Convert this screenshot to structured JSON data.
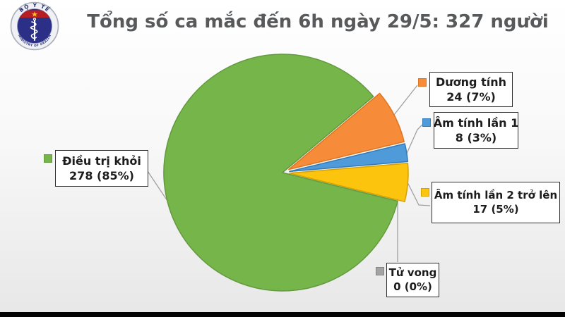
{
  "header": {
    "title": "Tổng số ca mắc đến 6h ngày 29/5: 327 người",
    "logo": {
      "top_text": "BỘ Y TẾ",
      "bottom_text": "MINISTRY OF HEALTH"
    }
  },
  "chart_data": {
    "type": "pie",
    "title": "Tổng số ca mắc đến 6h ngày 29/5: 327 người",
    "total_cases": 327,
    "unit": "người",
    "start_angle_deg": -40,
    "legend_position": "callout-boxes-around-pie",
    "slices": [
      {
        "label": "Dương tính",
        "value": 24,
        "pct": 7,
        "display": "24 (7%)",
        "color": "#f68c3a",
        "border": "#e0751f",
        "exploded": true
      },
      {
        "label": "Âm tính lần 1",
        "value": 8,
        "pct": 3,
        "display": "8 (3%)",
        "color": "#4f9bd9",
        "border": "#3279b7",
        "exploded": true
      },
      {
        "label": "Âm tính lần 2 trở lên",
        "value": 17,
        "pct": 5,
        "display": "17 (5%)",
        "color": "#fdc40d",
        "border": "#d5a000",
        "exploded": true
      },
      {
        "label": "Tử vong",
        "value": 0,
        "pct": 0,
        "display": "0 (0%)",
        "color": "#a3a3a3",
        "border": "#858585",
        "exploded": true
      },
      {
        "label": "Điều trị khỏi",
        "value": 278,
        "pct": 85,
        "display": "278 (85%)",
        "color": "#76b54a",
        "border": "#639a3f",
        "exploded": false
      }
    ]
  }
}
